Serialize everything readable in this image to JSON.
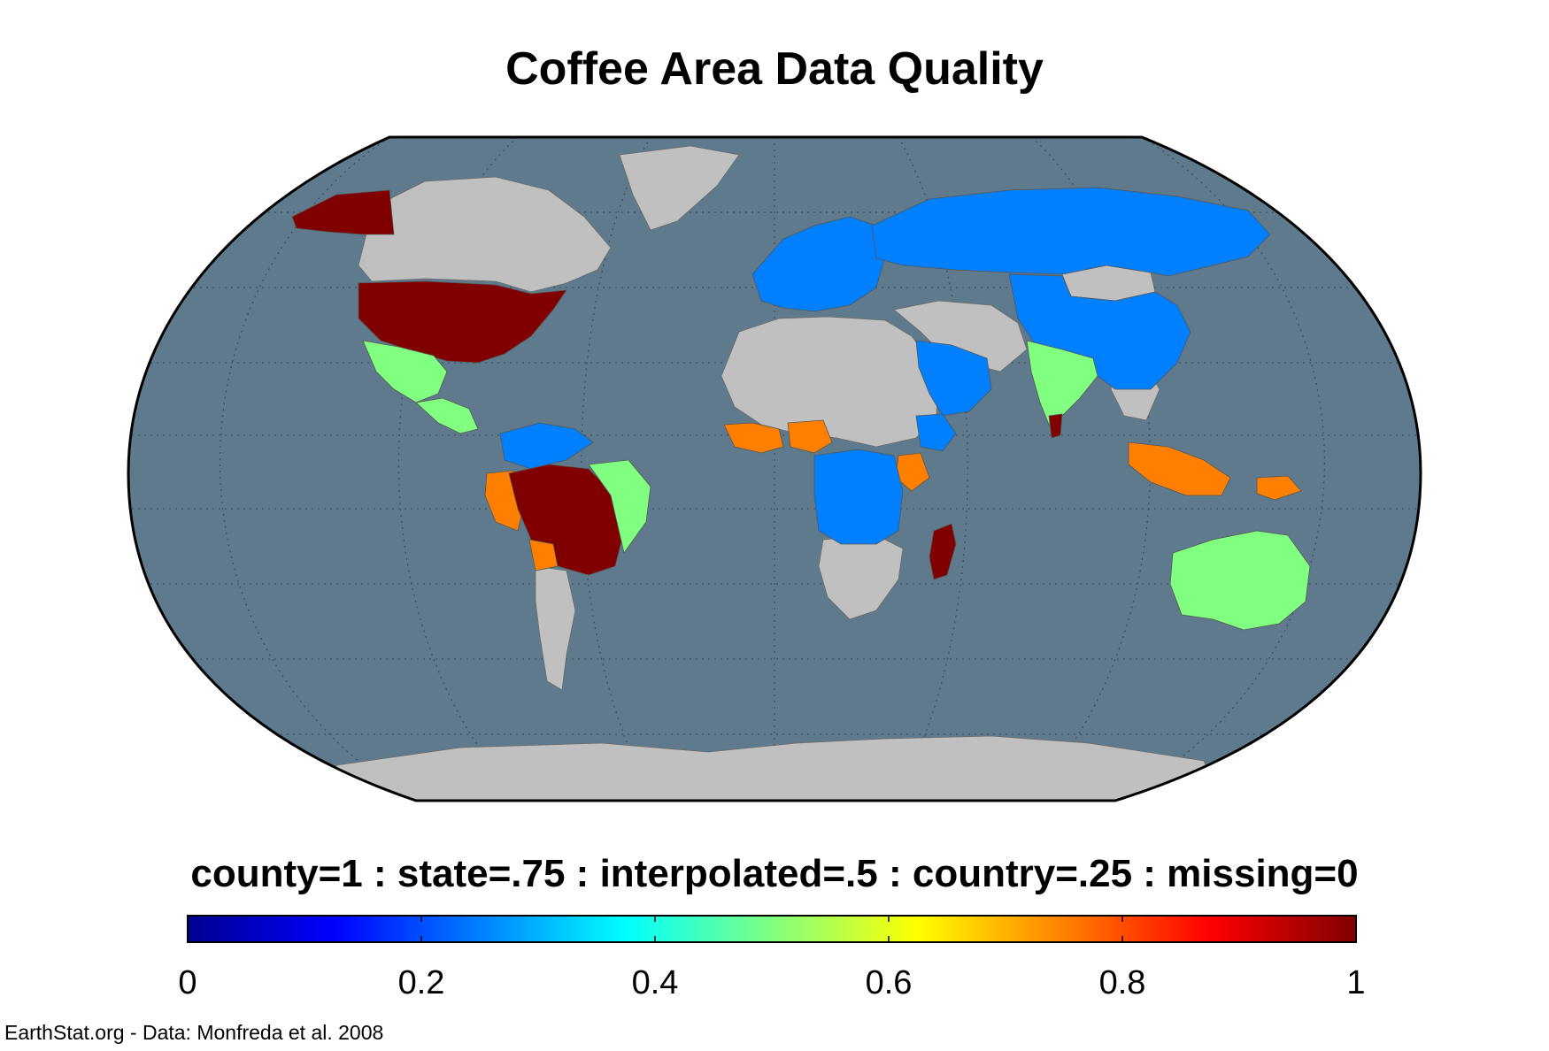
{
  "title": "Coffee Area Data Quality",
  "legend": {
    "caption": "county=1 : state=.75 : interpolated=.5 : country=.25 : missing=0",
    "ticks": [
      "0",
      "0.2",
      "0.4",
      "0.6",
      "0.8",
      "1"
    ],
    "range": [
      0,
      1
    ],
    "colormap": [
      "#00008f",
      "#0000ff",
      "#0080ff",
      "#00ffff",
      "#80ff80",
      "#ffff00",
      "#ff8000",
      "#ff0000",
      "#800000"
    ]
  },
  "credit": "EarthStat.org - Data: Monfreda et al. 2008",
  "colors": {
    "ocean": "#5f7a8c",
    "no_data_land": "#c0c0c0",
    "county": "#800000",
    "state": "#ff8000",
    "interpolated": "#80ff80",
    "country": "#0080ff"
  },
  "regions": [
    {
      "name": "Alaska",
      "value": 1
    },
    {
      "name": "United States",
      "value": 1
    },
    {
      "name": "Mexico",
      "value": 0.5
    },
    {
      "name": "Central America",
      "value": 0.5
    },
    {
      "name": "Colombia / Venezuela",
      "value": 0.25
    },
    {
      "name": "Peru",
      "value": 0.75
    },
    {
      "name": "Brazil (northwest)",
      "value": 1
    },
    {
      "name": "Brazil (east)",
      "value": 0.5
    },
    {
      "name": "Bolivia",
      "value": 0.75
    },
    {
      "name": "Europe",
      "value": 0.25
    },
    {
      "name": "Russia",
      "value": 0.25
    },
    {
      "name": "China",
      "value": 0.25
    },
    {
      "name": "Saudi Arabia",
      "value": 0.25
    },
    {
      "name": "India",
      "value": 0.5
    },
    {
      "name": "South India",
      "value": 1
    },
    {
      "name": "West Africa",
      "value": 0.75
    },
    {
      "name": "Nigeria",
      "value": 0.75
    },
    {
      "name": "Ethiopia",
      "value": 0.25
    },
    {
      "name": "Kenya",
      "value": 0.75
    },
    {
      "name": "Central Africa",
      "value": 0.25
    },
    {
      "name": "Madagascar",
      "value": 1
    },
    {
      "name": "Indonesia",
      "value": 0.75
    },
    {
      "name": "Papua New Guinea",
      "value": 0.75
    },
    {
      "name": "Australia",
      "value": 0.5
    }
  ]
}
